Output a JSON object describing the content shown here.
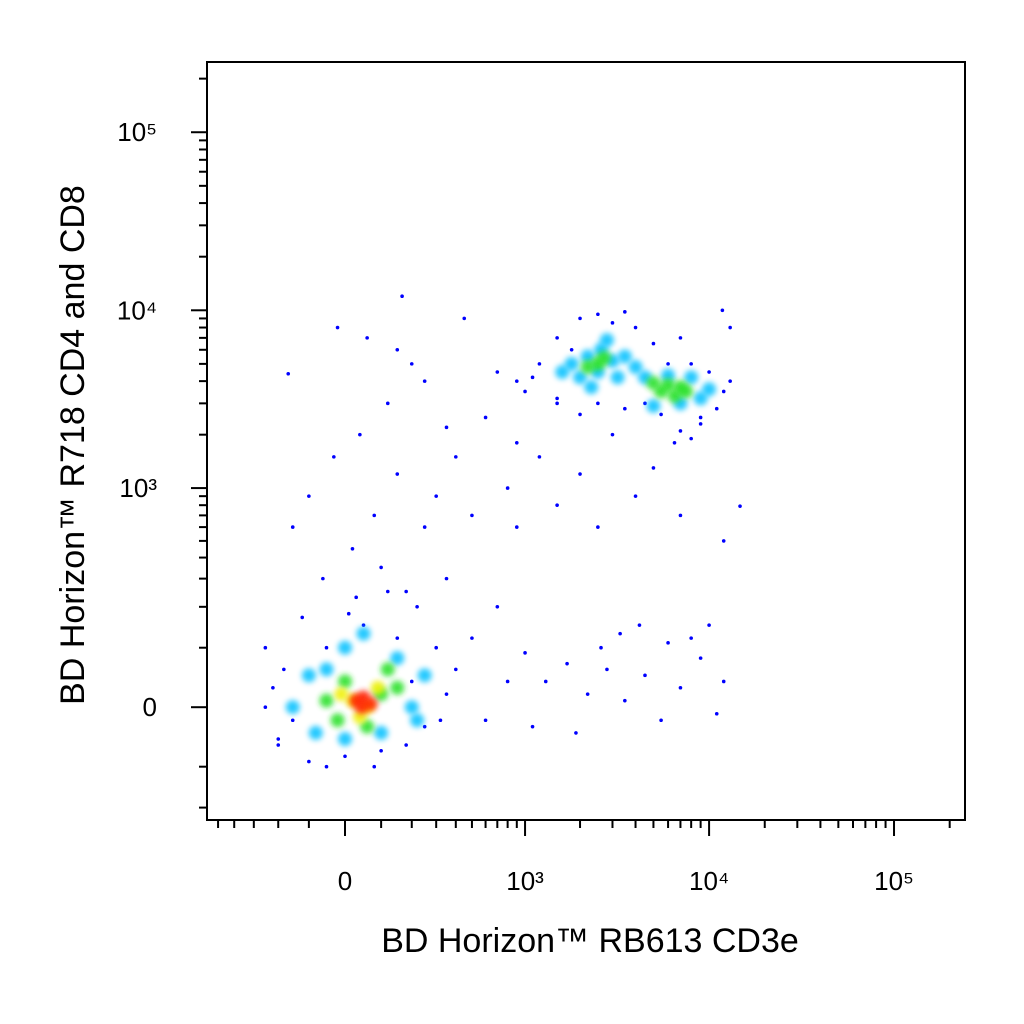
{
  "chart_data": {
    "type": "scatter",
    "xlabel": "BD Horizon™ RB613 CD3e",
    "ylabel": "BD Horizon™ R718 CD4 and CD8",
    "xscale": "biexponential",
    "yscale": "biexponential",
    "xlim": [
      -580,
      242000
    ],
    "ylim": [
      -240,
      248000
    ],
    "xticks": [
      0,
      {
        "value": 1000,
        "label": "10³"
      },
      {
        "value": 10000,
        "label": "10⁴"
      },
      {
        "value": 100000,
        "label": "10⁵"
      }
    ],
    "yticks": [
      0,
      {
        "value": 1000,
        "label": "10³"
      },
      {
        "value": 10000,
        "label": "10⁴"
      },
      {
        "value": 100000,
        "label": "10⁵"
      }
    ],
    "series": [
      {
        "color": "#0000ff",
        "x": [
          -60,
          20,
          80,
          150,
          -100,
          40,
          120,
          200,
          60,
          -30,
          250,
          300,
          400,
          500,
          600,
          800,
          900,
          1200,
          1500,
          2000,
          2500,
          3000,
          4000,
          5000,
          7000,
          9000,
          12000,
          -150,
          100,
          180,
          350,
          700,
          1000,
          1300,
          1700,
          2200,
          2800,
          3500,
          4500,
          5500,
          7000,
          9000,
          11000,
          12000,
          1100,
          1900,
          2600,
          3300,
          4200,
          6000,
          8000,
          10000,
          800,
          600,
          -250,
          500,
          -200,
          900,
          1500,
          350,
          250,
          -20,
          450,
          150,
          700,
          13000,
          -165,
          166,
          11800,
          14700,
          -250,
          -200,
          -180,
          -100,
          -50,
          0,
          50,
          100,
          150,
          200,
          250,
          300,
          350,
          -220,
          -120,
          30,
          120,
          220,
          400,
          -50,
          80,
          180,
          320,
          10,
          -150,
          1000,
          1200,
          1500,
          2000,
          2500,
          3000,
          4000,
          5000,
          6000,
          8000,
          10000,
          12000,
          11000,
          9000,
          7000,
          5500,
          4500,
          3500,
          2500,
          1500,
          1100,
          1800,
          3500,
          7000,
          13000,
          900,
          2000,
          6500,
          8000
        ],
        "y": [
          300,
          450,
          700,
          1200,
          900,
          2000,
          3000,
          5000,
          7000,
          1500,
          600,
          900,
          1500,
          700,
          2500,
          1000,
          600,
          1500,
          800,
          1200,
          600,
          2000,
          900,
          1300,
          700,
          2500,
          500,
          600,
          350,
          250,
          300,
          200,
          90,
          40,
          70,
          20,
          60,
          10,
          50,
          -20,
          30,
          80,
          -10,
          40,
          -30,
          -40,
          100,
          130,
          150,
          110,
          120,
          150,
          40,
          -20,
          100,
          120,
          -60,
          1800,
          3000,
          2200,
          4000,
          8000,
          9000,
          6000,
          4500,
          8000,
          4400,
          12000,
          10000,
          790,
          0,
          -50,
          60,
          -90,
          100,
          -80,
          150,
          -70,
          120,
          40,
          -30,
          100,
          20,
          30,
          170,
          230,
          250,
          200,
          60,
          -100,
          -100,
          -60,
          -20,
          180,
          -20,
          3500,
          5000,
          7000,
          9000,
          9500,
          8500,
          8000,
          6500,
          5000,
          5000,
          4500,
          3500,
          2800,
          2300,
          2100,
          2600,
          3000,
          2800,
          3000,
          3200,
          4200,
          6000,
          9800,
          7000,
          4000,
          4000,
          2600,
          1800,
          1900
        ]
      },
      {
        "color": "#00c0ff",
        "x": [
          1800,
          2200,
          2600,
          3000,
          2000,
          2500,
          3200,
          1600,
          2800,
          3500,
          4000,
          4500,
          7000,
          9000,
          5000,
          8000,
          6000,
          2300,
          10000,
          -150,
          -100,
          -80,
          0,
          100,
          200,
          150,
          0,
          -50,
          250,
          50,
          220
        ],
        "y": [
          5000,
          5500,
          6000,
          5200,
          4200,
          4500,
          4200,
          4500,
          6800,
          5500,
          4800,
          4200,
          3000,
          3200,
          2900,
          4200,
          4300,
          3700,
          3600,
          0,
          50,
          -40,
          -50,
          -40,
          0,
          80,
          100,
          60,
          50,
          130,
          -20
        ]
      },
      {
        "color": "#20e020",
        "x": [
          5500,
          6000,
          6500,
          7000,
          5000,
          7500,
          2500,
          2200,
          2700,
          -50,
          0,
          100,
          60,
          150,
          -20,
          120
        ],
        "y": [
          3500,
          3800,
          3300,
          3700,
          3900,
          3500,
          5000,
          4800,
          5400,
          10,
          40,
          20,
          -30,
          30,
          -20,
          60
        ]
      },
      {
        "color": "#f0f000",
        "x": [
          20,
          60,
          90,
          -10,
          40
        ],
        "y": [
          10,
          0,
          30,
          20,
          -15
        ]
      },
      {
        "color": "#ff2000",
        "x": [
          30,
          50,
          70,
          45
        ],
        "y": [
          10,
          15,
          5,
          0
        ]
      }
    ]
  }
}
